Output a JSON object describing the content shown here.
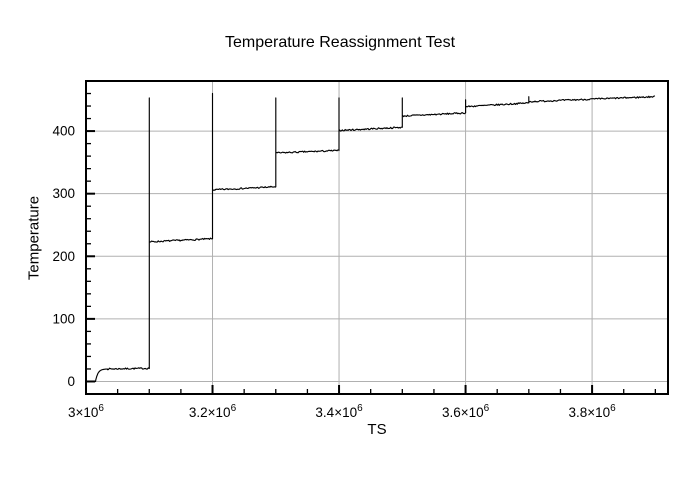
{
  "page": {
    "background": "#ffffff"
  },
  "chart_data": {
    "type": "line",
    "title": "Temperature Reassignment Test",
    "xlabel": "TS",
    "ylabel": "Temperature",
    "xlim": [
      3000000,
      3920000
    ],
    "ylim": [
      -20,
      480
    ],
    "grid": true,
    "legend": "none",
    "colors": {
      "line": "#000000",
      "grid": "#b0b0b0",
      "frame": "#000000",
      "text": "#000000",
      "background": "#ffffff"
    },
    "x_major_ticks": [
      {
        "value": 3000000,
        "base": "3×10",
        "sup": "6"
      },
      {
        "value": 3200000,
        "base": "3.2×10",
        "sup": "6"
      },
      {
        "value": 3400000,
        "base": "3.4×10",
        "sup": "6"
      },
      {
        "value": 3600000,
        "base": "3.6×10",
        "sup": "6"
      },
      {
        "value": 3800000,
        "base": "3.8×10",
        "sup": "6"
      }
    ],
    "x_minor_step": 50000,
    "y_major_ticks": [
      {
        "value": 0,
        "label": "0"
      },
      {
        "value": 100,
        "label": "100"
      },
      {
        "value": 200,
        "label": "200"
      },
      {
        "value": 300,
        "label": "300"
      },
      {
        "value": 400,
        "label": "400"
      }
    ],
    "y_minor_step": 20,
    "series": [
      {
        "name": "temperature",
        "color": "#000000",
        "noise": 1.2,
        "lead_in": {
          "x_start": 3015000,
          "x_end": 3034000,
          "from": 0,
          "to": 20,
          "tau": 3800
        },
        "plateaus": [
          {
            "x_start": 3034000,
            "x_end": 3100000,
            "y_start": 20,
            "y_end": 21
          },
          {
            "x_start": 3100000,
            "x_end": 3200000,
            "y_start": 223,
            "y_end": 228
          },
          {
            "x_start": 3200000,
            "x_end": 3300000,
            "y_start": 306,
            "y_end": 311
          },
          {
            "x_start": 3300000,
            "x_end": 3400000,
            "y_start": 365,
            "y_end": 369
          },
          {
            "x_start": 3400000,
            "x_end": 3500000,
            "y_start": 401,
            "y_end": 406
          },
          {
            "x_start": 3500000,
            "x_end": 3600000,
            "y_start": 424,
            "y_end": 429
          },
          {
            "x_start": 3600000,
            "x_end": 3700000,
            "y_start": 439,
            "y_end": 445
          },
          {
            "x_start": 3700000,
            "x_end": 3900000,
            "y_start": 447,
            "y_end": 455
          }
        ],
        "spikes": [
          {
            "x": 3100000,
            "top": 453
          },
          {
            "x": 3200000,
            "top": 460
          },
          {
            "x": 3300000,
            "top": 453
          },
          {
            "x": 3400000,
            "top": 453
          },
          {
            "x": 3500000,
            "top": 453
          },
          {
            "x": 3600000,
            "top": 450
          },
          {
            "x": 3700000,
            "top": 455
          }
        ]
      }
    ]
  }
}
